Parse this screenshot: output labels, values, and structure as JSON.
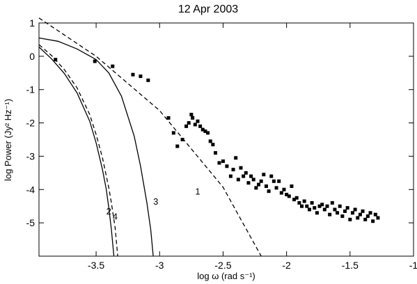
{
  "chart_data": {
    "type": "scatter",
    "title": "12 Apr 2003",
    "xlabel": "log ω (rad s⁻¹)",
    "ylabel": "log Power (Jy² Hz⁻¹)",
    "xlim": [
      -3.95,
      -1.0
    ],
    "ylim": [
      -6.0,
      1.0
    ],
    "x_ticks": [
      -3.5,
      -3.0,
      -2.5,
      -2.0,
      -1.5,
      -1.0
    ],
    "x_tick_labels": [
      "-3.5",
      "-3",
      "-2.5",
      "-2",
      "-1.5",
      "-1"
    ],
    "y_ticks": [
      1,
      0,
      -1,
      -2,
      -3,
      -4,
      -5
    ],
    "y_tick_labels": [
      "1",
      "0",
      "-1",
      "-2",
      "-3",
      "-4",
      "-5"
    ],
    "grid": false,
    "curve_labels": [
      {
        "text": "1",
        "x": -2.72,
        "y": -4.15
      },
      {
        "text": "2",
        "x": -3.42,
        "y": -4.75
      },
      {
        "text": "4",
        "x": -3.37,
        "y": -4.9
      },
      {
        "text": "3",
        "x": -3.05,
        "y": -4.45
      }
    ],
    "series": [
      {
        "label": "1",
        "style": "dashed",
        "x": [
          -3.95,
          -3.5,
          -3.0,
          -2.5,
          -2.2
        ],
        "y": [
          1.15,
          0.0,
          -1.63,
          -3.93,
          -6.0
        ]
      },
      {
        "label": "2",
        "style": "solid",
        "x": [
          -3.95,
          -3.85,
          -3.75,
          -3.65,
          -3.55,
          -3.5,
          -3.45,
          -3.42,
          -3.4,
          -3.38,
          -3.36
        ],
        "y": [
          0.28,
          -0.08,
          -0.52,
          -1.1,
          -1.95,
          -2.6,
          -3.4,
          -4.0,
          -4.55,
          -5.2,
          -6.0
        ]
      },
      {
        "label": "4",
        "style": "dashed",
        "x": [
          -3.95,
          -3.85,
          -3.75,
          -3.65,
          -3.55,
          -3.5,
          -3.45,
          -3.4,
          -3.38,
          -3.35,
          -3.33
        ],
        "y": [
          0.35,
          0.02,
          -0.4,
          -0.95,
          -1.75,
          -2.35,
          -3.05,
          -3.95,
          -4.4,
          -5.15,
          -6.0
        ]
      },
      {
        "label": "3",
        "style": "solid",
        "x": [
          -3.95,
          -3.8,
          -3.65,
          -3.5,
          -3.4,
          -3.3,
          -3.2,
          -3.15,
          -3.1,
          -3.07,
          -3.05
        ],
        "y": [
          0.55,
          0.45,
          0.22,
          -0.1,
          -0.5,
          -1.2,
          -2.4,
          -3.3,
          -4.4,
          -5.2,
          -6.0
        ]
      },
      {
        "label": "data",
        "style": "points",
        "x": [
          -3.82,
          -3.51,
          -3.37,
          -3.21,
          -3.15,
          -3.09,
          -2.93,
          -2.89,
          -2.86,
          -2.82,
          -2.79,
          -2.77,
          -2.75,
          -2.74,
          -2.72,
          -2.7,
          -2.68,
          -2.66,
          -2.64,
          -2.62,
          -2.6,
          -2.58,
          -2.56,
          -2.53,
          -2.5,
          -2.47,
          -2.44,
          -2.42,
          -2.4,
          -2.38,
          -2.36,
          -2.34,
          -2.32,
          -2.3,
          -2.28,
          -2.26,
          -2.24,
          -2.22,
          -2.2,
          -2.18,
          -2.16,
          -2.14,
          -2.12,
          -2.1,
          -2.08,
          -2.06,
          -2.04,
          -2.02,
          -2.0,
          -1.98,
          -1.96,
          -1.94,
          -1.92,
          -1.9,
          -1.88,
          -1.86,
          -1.84,
          -1.82,
          -1.8,
          -1.78,
          -1.76,
          -1.74,
          -1.72,
          -1.7,
          -1.68,
          -1.66,
          -1.64,
          -1.62,
          -1.6,
          -1.58,
          -1.56,
          -1.54,
          -1.52,
          -1.5,
          -1.48,
          -1.46,
          -1.44,
          -1.42,
          -1.4,
          -1.38,
          -1.36,
          -1.34,
          -1.32,
          -1.3,
          -1.28
        ],
        "y": [
          -0.1,
          -0.15,
          -0.3,
          -0.55,
          -0.6,
          -0.72,
          -1.85,
          -2.3,
          -2.7,
          -2.5,
          -2.1,
          -2.0,
          -1.75,
          -1.85,
          -2.05,
          -1.95,
          -2.1,
          -2.2,
          -2.25,
          -2.3,
          -2.55,
          -2.65,
          -2.9,
          -3.2,
          -3.15,
          -3.3,
          -3.6,
          -3.4,
          -3.05,
          -3.7,
          -3.35,
          -3.6,
          -3.5,
          -3.8,
          -3.6,
          -3.7,
          -3.95,
          -3.85,
          -3.75,
          -3.55,
          -3.9,
          -4.05,
          -3.6,
          -3.75,
          -3.95,
          -3.75,
          -4.1,
          -4.0,
          -4.15,
          -4.2,
          -3.9,
          -4.3,
          -4.25,
          -4.4,
          -4.5,
          -4.35,
          -4.5,
          -4.6,
          -4.4,
          -4.55,
          -4.7,
          -4.5,
          -4.45,
          -4.6,
          -4.5,
          -4.75,
          -4.4,
          -4.6,
          -4.7,
          -4.5,
          -4.8,
          -4.65,
          -4.55,
          -4.9,
          -4.7,
          -4.6,
          -4.85,
          -4.75,
          -4.65,
          -4.9,
          -4.8,
          -4.7,
          -4.95,
          -4.75,
          -4.85
        ]
      }
    ]
  }
}
